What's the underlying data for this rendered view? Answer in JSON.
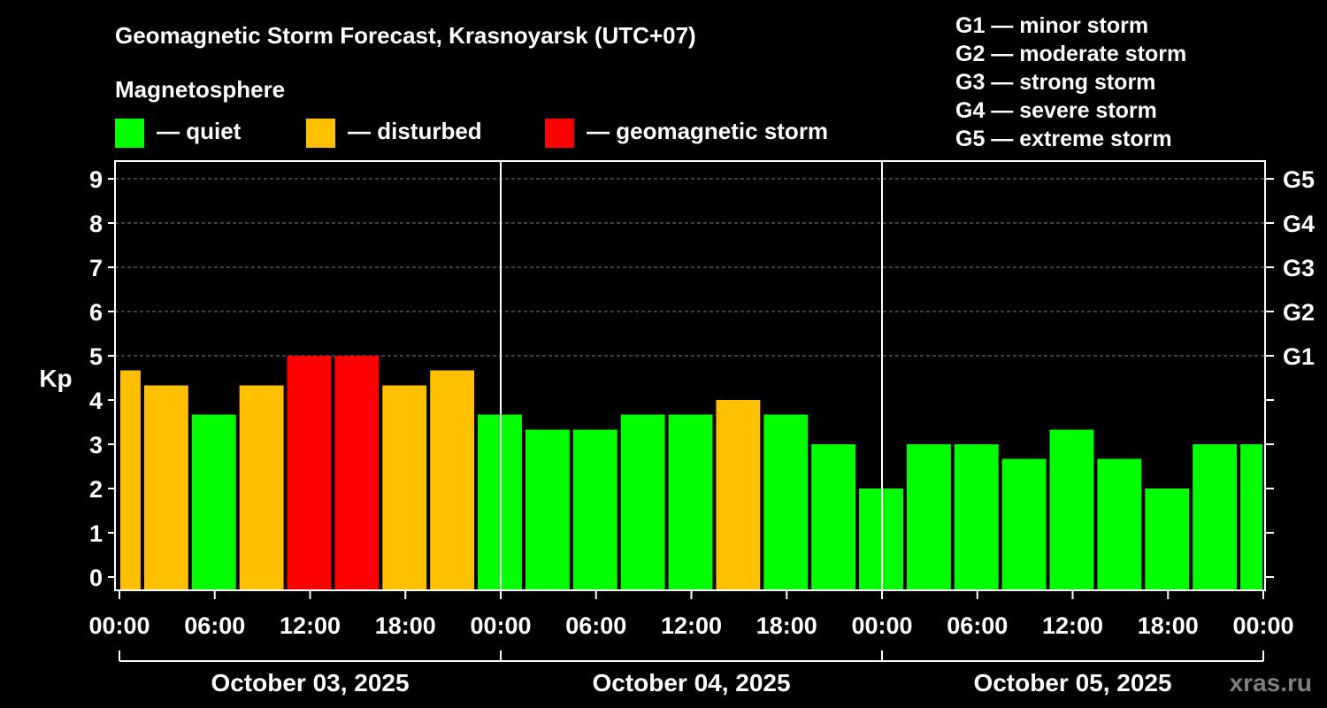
{
  "chart_data": {
    "type": "bar",
    "title": "Geomagnetic Storm Forecast, Krasnoyarsk (UTC+07)",
    "legend_title": "Magnetosphere",
    "legend": [
      {
        "label": "— quiet",
        "color": "#00ff00"
      },
      {
        "label": "— disturbed",
        "color": "#ffc000"
      },
      {
        "label": "— geomagnetic storm",
        "color": "#ff0000"
      }
    ],
    "scale_legend": [
      "G1 — minor storm",
      "G2 — moderate storm",
      "G3 — strong storm",
      "G4 — severe storm",
      "G5 — extreme storm"
    ],
    "ylabel": "Kp",
    "ylim": [
      0,
      9
    ],
    "y_ticks": [
      "0",
      "1",
      "2",
      "3",
      "4",
      "5",
      "6",
      "7",
      "8",
      "9"
    ],
    "right_ticks": [
      {
        "value": 5,
        "label": "G1"
      },
      {
        "value": 6,
        "label": "G2"
      },
      {
        "value": 7,
        "label": "G3"
      },
      {
        "value": 8,
        "label": "G4"
      },
      {
        "value": 9,
        "label": "G5"
      }
    ],
    "x_ticks": [
      "00:00",
      "06:00",
      "12:00",
      "18:00",
      "00:00",
      "06:00",
      "12:00",
      "18:00",
      "00:00",
      "06:00",
      "12:00",
      "18:00",
      "00:00"
    ],
    "days": [
      "October 03, 2025",
      "October 04, 2025",
      "October 05, 2025"
    ],
    "interval_hours": 3,
    "values": [
      4.67,
      4.33,
      3.67,
      4.33,
      5,
      5,
      4.33,
      4.67,
      3.67,
      3.33,
      3.33,
      3.67,
      3.67,
      4,
      3.67,
      3,
      2,
      3,
      3,
      2.67,
      3.33,
      2.67,
      2,
      3,
      3
    ],
    "levels": [
      "disturbed",
      "disturbed",
      "quiet",
      "disturbed",
      "storm",
      "storm",
      "disturbed",
      "disturbed",
      "quiet",
      "quiet",
      "quiet",
      "quiet",
      "quiet",
      "disturbed",
      "quiet",
      "quiet",
      "quiet",
      "quiet",
      "quiet",
      "quiet",
      "quiet",
      "quiet",
      "quiet",
      "quiet",
      "quiet"
    ],
    "colors": {
      "quiet": "#00ff00",
      "disturbed": "#ffc000",
      "storm": "#ff0000"
    },
    "grid": true
  },
  "watermark": "xras.ru"
}
